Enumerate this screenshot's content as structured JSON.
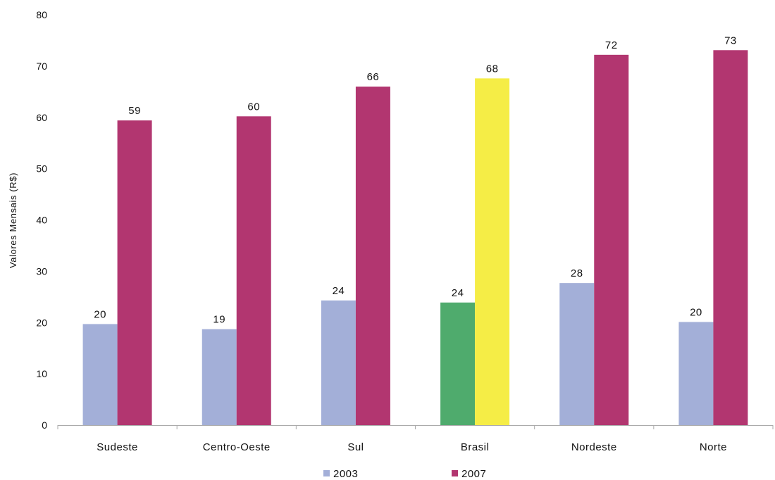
{
  "chart_data": {
    "type": "bar",
    "title": "",
    "xlabel": "",
    "ylabel": "Valores Mensais (R$)",
    "ylim": [
      0,
      80
    ],
    "yticks": [
      0,
      10,
      20,
      30,
      40,
      50,
      60,
      70,
      80
    ],
    "grid": false,
    "legend_position": "bottom",
    "categories": [
      "Sudeste",
      "Centro-Oeste",
      "Sul",
      "Brasil",
      "Nordeste",
      "Norte"
    ],
    "series": [
      {
        "name": "2003",
        "color": "#a3afd8",
        "values": [
          19.7,
          18.7,
          24.3,
          23.9,
          27.7,
          20.1
        ],
        "labels": [
          "20",
          "19",
          "24",
          "24",
          "28",
          "20"
        ]
      },
      {
        "name": "2007",
        "color": "#b23670",
        "values": [
          59.4,
          60.2,
          66.0,
          67.6,
          72.2,
          73.1
        ],
        "labels": [
          "59",
          "60",
          "66",
          "68",
          "72",
          "73"
        ]
      }
    ],
    "highlight": {
      "category": "Brasil",
      "colors": {
        "2003": "#4fab6d",
        "2007": "#f5ed46"
      }
    }
  }
}
